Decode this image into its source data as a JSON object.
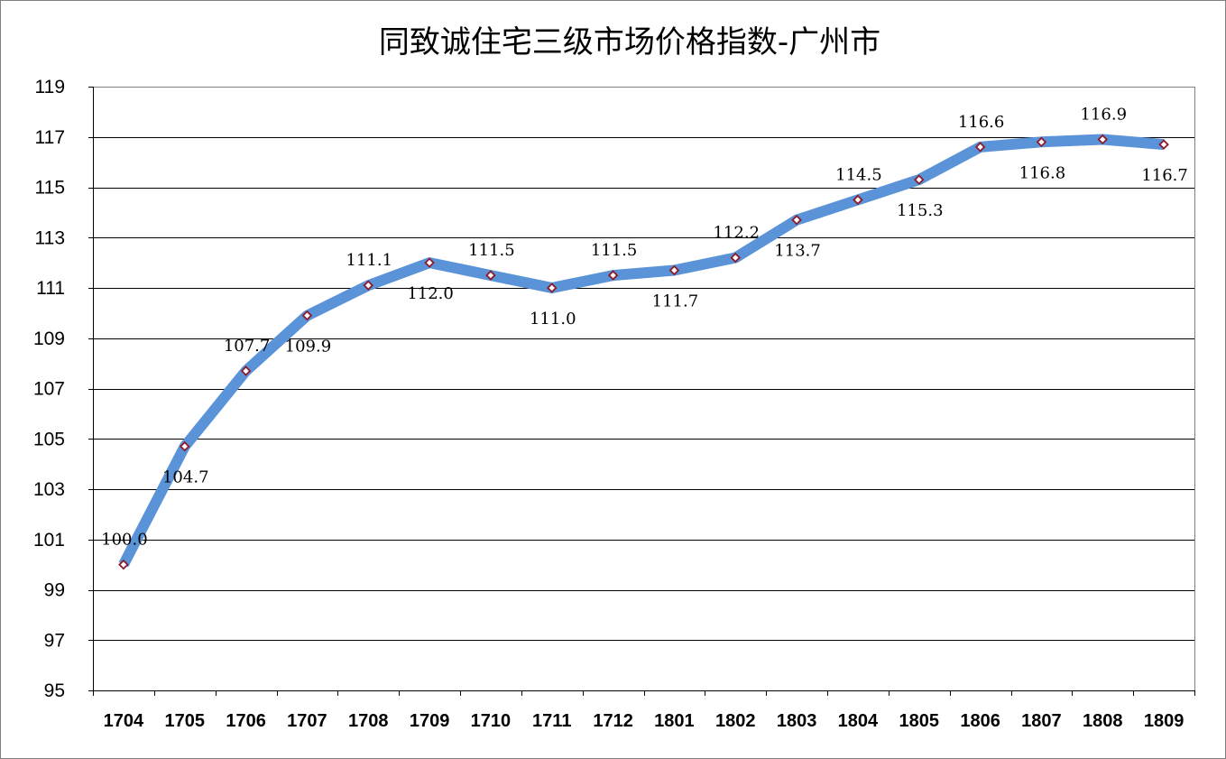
{
  "chart_data": {
    "type": "line",
    "title": "同致诚住宅三级市场价格指数-广州市",
    "xlabel": "",
    "ylabel": "",
    "ylim": [
      95,
      119
    ],
    "yticks": [
      "95",
      "97",
      "99",
      "101",
      "103",
      "105",
      "107",
      "109",
      "111",
      "113",
      "115",
      "117",
      "119"
    ],
    "grid": true,
    "legend": "none",
    "categories": [
      "1704",
      "1705",
      "1706",
      "1707",
      "1708",
      "1709",
      "1710",
      "1711",
      "1712",
      "1801",
      "1802",
      "1803",
      "1804",
      "1805",
      "1806",
      "1807",
      "1808",
      "1809"
    ],
    "series": [
      {
        "values": [
          100.0,
          104.7,
          107.7,
          109.9,
          111.1,
          112.0,
          111.5,
          111.0,
          111.5,
          111.7,
          112.2,
          113.7,
          114.5,
          115.3,
          116.6,
          116.8,
          116.9,
          116.7
        ],
        "labels": [
          "100.0",
          "104.7",
          "107.7",
          "109.9",
          "111.1",
          "112.0",
          "111.5",
          "111.0",
          "111.5",
          "111.7",
          "112.2",
          "113.7",
          "114.5",
          "115.3",
          "116.6",
          "116.8",
          "116.9",
          "116.7"
        ],
        "label_side": [
          "above",
          "below",
          "above",
          "below",
          "above",
          "below",
          "above",
          "below",
          "above",
          "below",
          "above",
          "below",
          "above",
          "below",
          "above",
          "below",
          "above",
          "below"
        ]
      }
    ],
    "colors": {
      "line": "#5b93d8",
      "marker": "#8b1a2a",
      "grid": "#000000",
      "frame": "#808080"
    }
  }
}
